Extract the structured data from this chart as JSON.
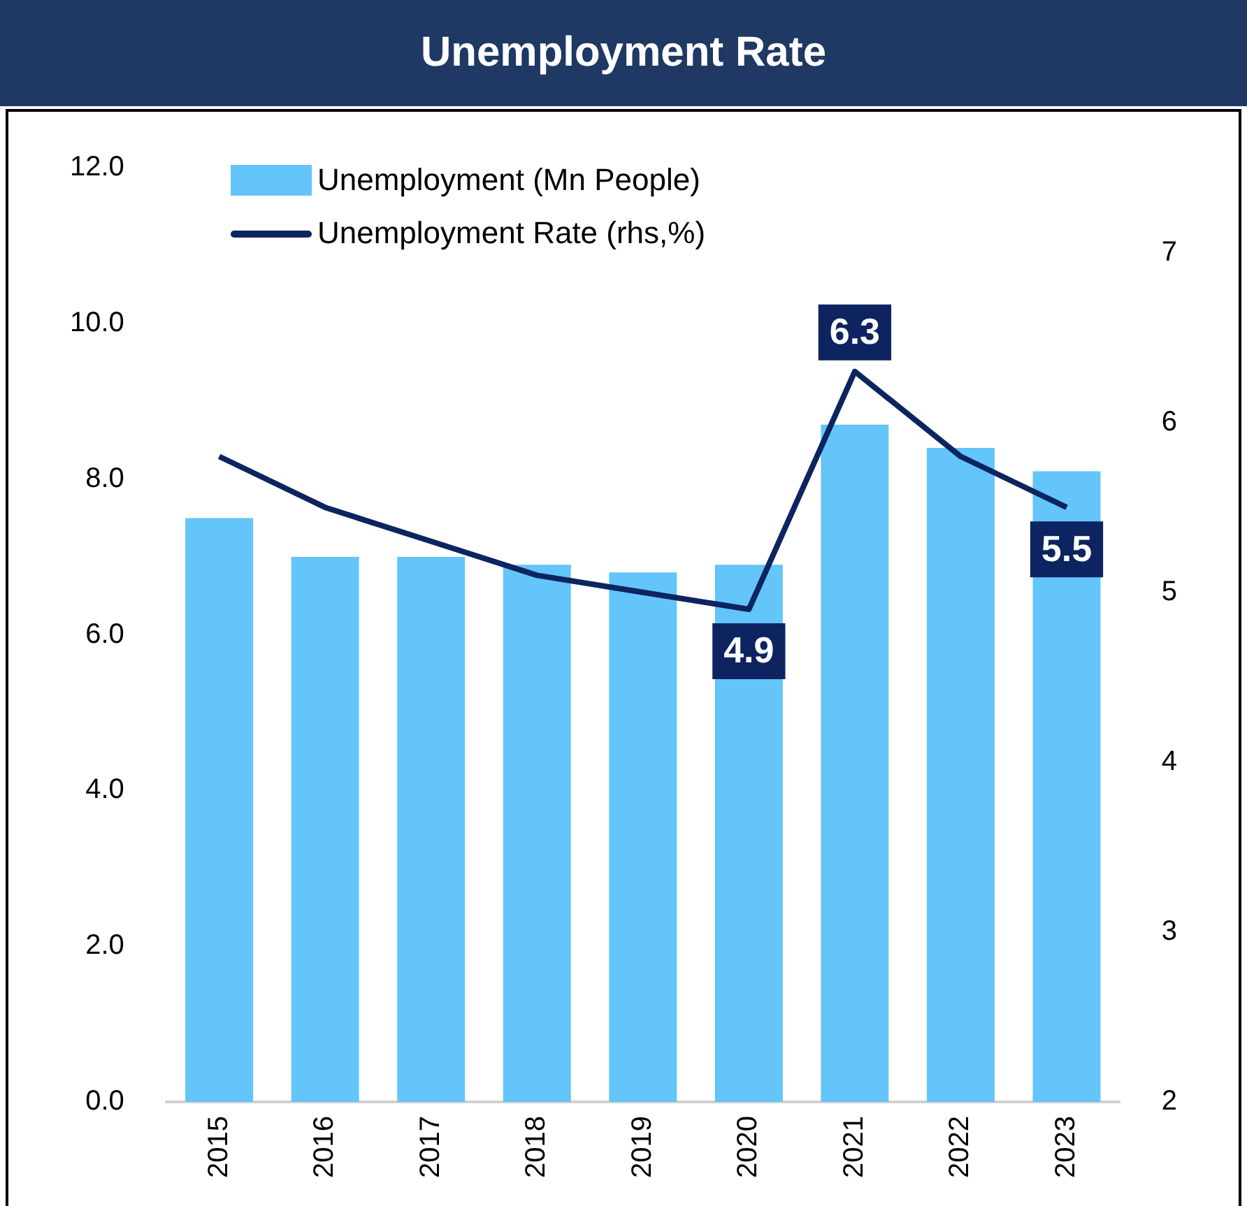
{
  "chart_data": {
    "type": "bar",
    "title": "Unemployment Rate",
    "categories": [
      "2015",
      "2016",
      "2017",
      "2018",
      "2019",
      "2020",
      "2021",
      "2022",
      "2023"
    ],
    "series": [
      {
        "name": "Unemployment (Mn People)",
        "color": "#63c5f9",
        "values": [
          7.5,
          7.0,
          7.0,
          6.9,
          6.8,
          6.9,
          8.7,
          8.4,
          8.1
        ]
      },
      {
        "name": "Unemployment Rate (rhs,%)",
        "type": "line",
        "axis": "y2",
        "color": "#0d2461",
        "values": [
          5.8,
          5.5,
          5.3,
          5.1,
          5.0,
          4.9,
          6.3,
          5.8,
          5.5
        ],
        "value_labels": [
          null,
          null,
          null,
          null,
          null,
          "4.9",
          "6.3",
          null,
          "5.5"
        ]
      }
    ],
    "ylim": [
      0,
      12
    ],
    "yticks": [
      {
        "value": 0,
        "label": "0.0"
      },
      {
        "value": 2,
        "label": "2.0"
      },
      {
        "value": 4,
        "label": "4.0"
      },
      {
        "value": 6,
        "label": "6.0"
      },
      {
        "value": 8,
        "label": "8.0"
      },
      {
        "value": 10,
        "label": "10.0"
      },
      {
        "value": 12,
        "label": "12.0"
      }
    ],
    "y2lim": [
      2,
      7.5
    ],
    "y2ticks": [
      2,
      3,
      4,
      5,
      6,
      7
    ],
    "grid": false,
    "legend": "top left",
    "marker": "none"
  }
}
